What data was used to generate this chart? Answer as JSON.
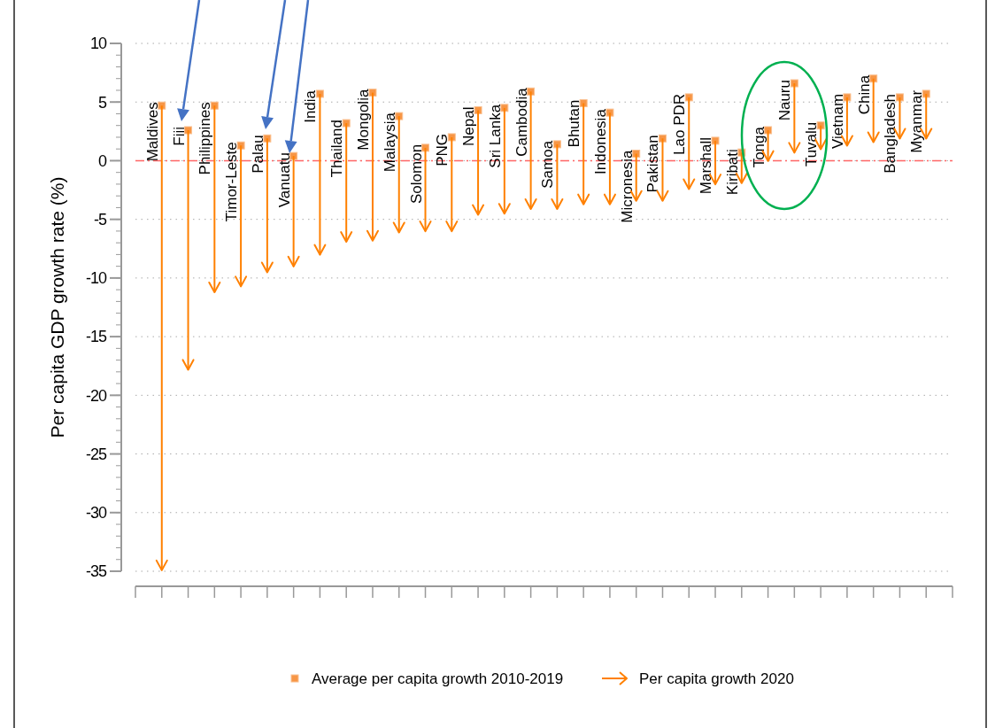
{
  "chart_data": {
    "type": "scatter",
    "ylabel": "Per capita GDP growth rate (%)",
    "categories": [
      "Maldives",
      "Fiji",
      "Philippines",
      "Timor-Leste",
      "Palau",
      "Vanuatu",
      "India",
      "Thailand",
      "Mongolia",
      "Malaysia",
      "Solomon",
      "PNG",
      "Nepal",
      "Sri Lanka",
      "Cambodia",
      "Samoa",
      "Bhutan",
      "Indonesia",
      "Micronesia",
      "Pakistan",
      "Lao PDR",
      "Marshall",
      "Kiribati",
      "Tonga",
      "Nauru",
      "Tuvalu",
      "Vietnam",
      "China",
      "Bangladesh",
      "Myanmar"
    ],
    "series": [
      {
        "name": "Average per capita growth 2010-2019",
        "color": "#f79646",
        "marker": "square",
        "values": [
          4.7,
          2.6,
          4.7,
          1.3,
          1.9,
          0.4,
          5.7,
          3.2,
          5.8,
          3.8,
          1.1,
          2.0,
          4.3,
          4.5,
          5.9,
          1.4,
          4.9,
          4.1,
          0.6,
          1.9,
          5.4,
          1.7,
          0.7,
          2.6,
          6.6,
          3.0,
          5.4,
          7.0,
          5.4,
          5.7
        ]
      },
      {
        "name": "Per capita growth 2020",
        "color": "#ff8000",
        "values": [
          -34.5,
          -17.4,
          -10.8,
          -10.3,
          -9.1,
          -8.6,
          -7.6,
          -6.5,
          -6.4,
          -5.7,
          -5.6,
          -5.6,
          -4.2,
          -4.1,
          -3.7,
          -3.7,
          -3.3,
          -3.3,
          -3.0,
          -3.0,
          -2.0,
          -1.6,
          -1.5,
          0.4,
          1.1,
          1.4,
          1.7,
          2.0,
          2.3,
          2.3
        ]
      }
    ],
    "ylim": [
      -35,
      10
    ],
    "yticks": [
      -35,
      -30,
      -25,
      -20,
      -15,
      -10,
      -5,
      0,
      5,
      10
    ],
    "grid": "y",
    "legend": "bottom",
    "ref_lines": [
      {
        "axis": "y",
        "value": 0,
        "color": "#ff6666",
        "line_style": "dashed"
      }
    ]
  }
}
